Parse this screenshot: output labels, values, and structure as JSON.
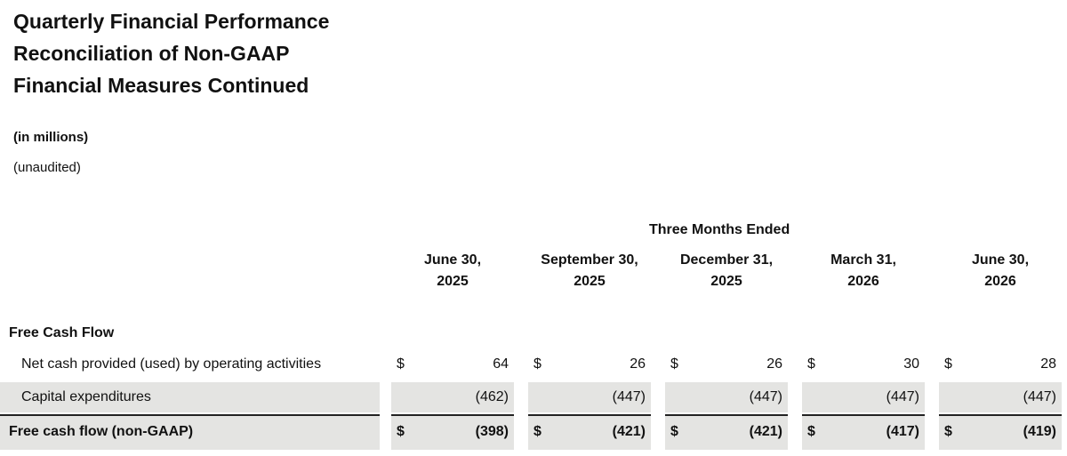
{
  "header": {
    "title_lines": [
      "Quarterly Financial Performance",
      "Reconciliation of Non-GAAP",
      "Financial Measures Continued"
    ],
    "units": "(in millions)",
    "note": "(unaudited)"
  },
  "table": {
    "period_heading": "Three Months Ended",
    "currency_symbol": "$",
    "columns": [
      [
        "June 30,",
        "2025"
      ],
      [
        "September 30,",
        "2025"
      ],
      [
        "December 31,",
        "2025"
      ],
      [
        "March 31,",
        "2026"
      ],
      [
        "June 30,",
        "2026"
      ]
    ],
    "section": "Free Cash Flow",
    "rows": [
      {
        "label": "Net cash provided (used) by operating activities",
        "currency": true,
        "values": [
          "64",
          "26",
          "26",
          "30",
          "28"
        ]
      },
      {
        "label": "Capital expenditures",
        "currency": false,
        "values": [
          "(462)",
          "(447)",
          "(447)",
          "(447)",
          "(447)"
        ]
      },
      {
        "label": "Free cash flow (non-GAAP)",
        "currency": true,
        "values": [
          "(398)",
          "(421)",
          "(421)",
          "(417)",
          "(419)"
        ]
      }
    ]
  }
}
